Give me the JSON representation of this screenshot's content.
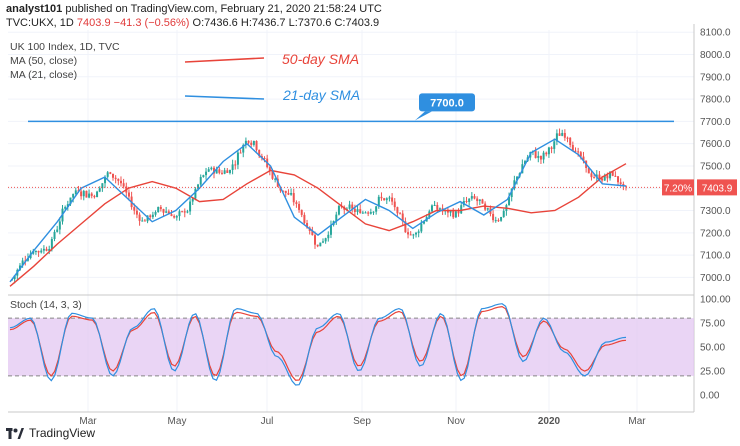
{
  "header": {
    "author": "analyst101",
    "published": "published on TradingView.com, February 21, 2020 21:58:24 UTC",
    "ticker": "TVC:UKX, 1D",
    "last": "7403.9",
    "change": "−41.3 (−0.56%)",
    "open": "O:7436.6",
    "high": "H:7436.7",
    "low": "L:7370.6",
    "close": "C:7403.9"
  },
  "legend": {
    "title": "UK 100 Index, 1D, TVC",
    "ma50": "MA (50, close)",
    "ma21": "MA (21, close)",
    "stoch": "Stoch (14, 3, 3)"
  },
  "annotations": {
    "sma50": "50-day SMA",
    "sma21": "21-day SMA",
    "resistance": "7700.0"
  },
  "price_axis": {
    "current_label": "7403.9",
    "percent_badge": "7.20%"
  },
  "footer": {
    "brand": "TradingView"
  },
  "colors": {
    "candle_up": "#26a69a",
    "candle_down": "#ef5350",
    "ma50": "#e8443a",
    "ma21": "#2f8fe0",
    "resistance": "#2f8fe0",
    "stoch_band": "#e3c7f2",
    "stoch_k": "#2f8fe0",
    "stoch_d": "#e8443a"
  },
  "chart_data": [
    {
      "type": "candlestick",
      "title": "UK 100 Index, 1D, TVC",
      "x_ticks": [
        "Mar",
        "May",
        "Jul",
        "Sep",
        "Nov",
        "2020",
        "Mar"
      ],
      "y_ticks": [
        7000,
        7100,
        7200,
        7300,
        7400,
        7500,
        7600,
        7700,
        7800,
        7900,
        8000,
        8100
      ],
      "ylim": [
        6930,
        8110
      ],
      "resistance_level": 7700,
      "last_close": 7403.9,
      "series": [
        {
          "name": "MA (50, close)",
          "approx_values": [
            6960,
            7050,
            7150,
            7240,
            7330,
            7400,
            7430,
            7400,
            7340,
            7350,
            7420,
            7480,
            7460,
            7400,
            7320,
            7240,
            7210,
            7250,
            7300,
            7300,
            7320,
            7310,
            7290,
            7300,
            7360,
            7450,
            7510
          ]
        },
        {
          "name": "MA (21, close)",
          "approx_values": [
            6980,
            7120,
            7250,
            7400,
            7450,
            7350,
            7250,
            7300,
            7400,
            7520,
            7600,
            7500,
            7270,
            7190,
            7270,
            7350,
            7300,
            7220,
            7290,
            7340,
            7280,
            7350,
            7560,
            7620,
            7550,
            7420,
            7410
          ]
        }
      ]
    },
    {
      "type": "line",
      "title": "Stoch (14, 3, 3)",
      "y_ticks": [
        0,
        25,
        50,
        75,
        100
      ],
      "ylim": [
        -5,
        103
      ],
      "bands": [
        20,
        80
      ],
      "series": [
        {
          "name": "%K",
          "approx_values": [
            70,
            80,
            15,
            85,
            80,
            20,
            70,
            90,
            25,
            85,
            15,
            90,
            85,
            40,
            10,
            70,
            85,
            25,
            80,
            90,
            30,
            85,
            15,
            90,
            95,
            35,
            80,
            45,
            20,
            55,
            60
          ]
        },
        {
          "name": "%D",
          "approx_values": [
            68,
            78,
            20,
            82,
            78,
            25,
            68,
            86,
            30,
            82,
            20,
            86,
            82,
            45,
            15,
            66,
            82,
            30,
            77,
            87,
            35,
            82,
            20,
            87,
            92,
            40,
            77,
            48,
            25,
            52,
            57
          ]
        }
      ]
    }
  ]
}
